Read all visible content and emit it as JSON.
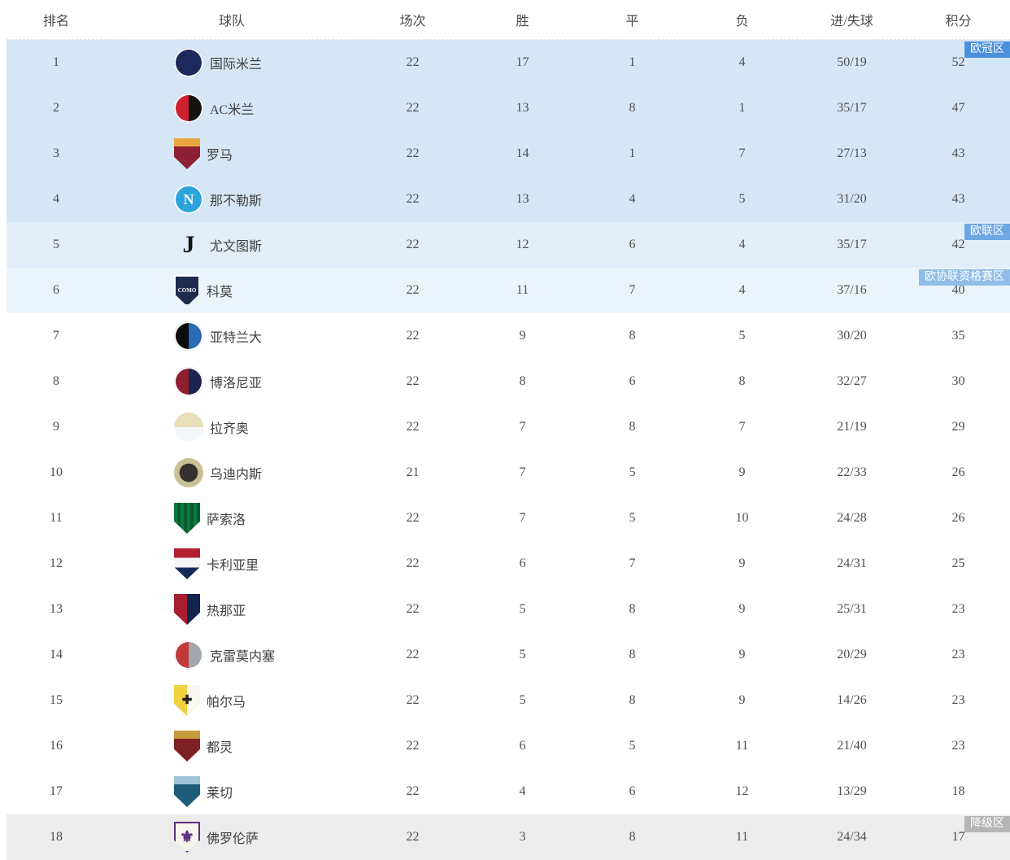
{
  "table": {
    "columns": [
      "排名",
      "球队",
      "场次",
      "胜",
      "平",
      "负",
      "进/失球",
      "积分"
    ]
  },
  "zones": {
    "ucl": {
      "label": "欧冠区",
      "row_bg": "#d5e7f7",
      "badge_bg": "#4a90dd"
    },
    "uel": {
      "label": "欧联区",
      "row_bg": "#e1eefa",
      "badge_bg": "#6fa7e2"
    },
    "uecl": {
      "label": "欧协联资格赛区",
      "row_bg": "#ecf4fb",
      "badge_bg": "#8fbde8"
    },
    "releg": {
      "label": "降级区",
      "row_bg": "#ececec",
      "badge_bg": "#b5b5b5"
    }
  },
  "teams": [
    {
      "rank": "1",
      "name": "国际米兰",
      "played": "22",
      "win": "17",
      "draw": "1",
      "loss": "4",
      "goals": "50/19",
      "points": "52",
      "zone": "ucl",
      "show_badge": true,
      "logo": {
        "shape": "circle",
        "pattern": "solid",
        "colors": [
          "#1b2a5b"
        ],
        "ring": true,
        "text": "",
        "text_color": "#ffffff",
        "text_size": "10px"
      }
    },
    {
      "rank": "2",
      "name": "AC米兰",
      "played": "22",
      "win": "13",
      "draw": "8",
      "loss": "1",
      "goals": "35/17",
      "points": "47",
      "zone": "ucl",
      "show_badge": false,
      "logo": {
        "shape": "circle",
        "pattern": "v",
        "colors": [
          "#cc2030",
          "#141414"
        ],
        "ring": true,
        "text": "",
        "text_color": "#ffffff",
        "text_size": "10px"
      }
    },
    {
      "rank": "3",
      "name": "罗马",
      "played": "22",
      "win": "14",
      "draw": "1",
      "loss": "7",
      "goals": "27/13",
      "points": "43",
      "zone": "ucl",
      "show_badge": false,
      "logo": {
        "shape": "shield",
        "pattern": "h25",
        "colors": [
          "#e9a63c",
          "#8e2033"
        ],
        "ring": false,
        "text": "",
        "text_color": "#ffffff",
        "text_size": "10px"
      }
    },
    {
      "rank": "4",
      "name": "那不勒斯",
      "played": "22",
      "win": "13",
      "draw": "4",
      "loss": "5",
      "goals": "31/20",
      "points": "43",
      "zone": "ucl",
      "show_badge": false,
      "logo": {
        "shape": "circle",
        "pattern": "solid",
        "colors": [
          "#2da3dc"
        ],
        "ring": true,
        "text": "N",
        "text_color": "#ffffff",
        "text_size": "18px"
      }
    },
    {
      "rank": "5",
      "name": "尤文图斯",
      "played": "22",
      "win": "12",
      "draw": "6",
      "loss": "4",
      "goals": "35/17",
      "points": "42",
      "zone": "uel",
      "show_badge": true,
      "logo": {
        "shape": "circle",
        "pattern": "solid",
        "colors": [
          "transparent"
        ],
        "ring": false,
        "text": "J",
        "text_color": "#111111",
        "text_size": "30px"
      }
    },
    {
      "rank": "6",
      "name": "科莫",
      "played": "22",
      "win": "11",
      "draw": "7",
      "loss": "4",
      "goals": "37/16",
      "points": "40",
      "zone": "uecl",
      "show_badge": true,
      "logo": {
        "shape": "shield",
        "pattern": "solid",
        "colors": [
          "#1d2b4f"
        ],
        "ring": true,
        "ring_color": "#ffffff",
        "text": "COMO",
        "text_color": "#ffffff",
        "text_size": "7px"
      }
    },
    {
      "rank": "7",
      "name": "亚特兰大",
      "played": "22",
      "win": "9",
      "draw": "8",
      "loss": "5",
      "goals": "30/20",
      "points": "35",
      "zone": null,
      "show_badge": false,
      "logo": {
        "shape": "circle",
        "pattern": "v",
        "colors": [
          "#0c0c0c",
          "#2a6cb4"
        ],
        "ring": true,
        "text": "",
        "text_color": "#ffffff",
        "text_size": "10px"
      }
    },
    {
      "rank": "8",
      "name": "博洛尼亚",
      "played": "22",
      "win": "8",
      "draw": "6",
      "loss": "8",
      "goals": "32/27",
      "points": "30",
      "zone": null,
      "show_badge": false,
      "logo": {
        "shape": "circle",
        "pattern": "v",
        "colors": [
          "#8e1f2f",
          "#1b2550"
        ],
        "ring": true,
        "text": "",
        "text_color": "#ffffff",
        "text_size": "10px"
      }
    },
    {
      "rank": "9",
      "name": "拉齐奥",
      "played": "22",
      "win": "7",
      "draw": "8",
      "loss": "7",
      "goals": "21/19",
      "points": "29",
      "zone": null,
      "show_badge": false,
      "logo": {
        "shape": "circle",
        "pattern": "h",
        "colors": [
          "#e8dfb8",
          "#f4f8fb"
        ],
        "ring": false,
        "text": "",
        "text_color": "#b49b4a",
        "text_size": "10px"
      }
    },
    {
      "rank": "10",
      "name": "乌迪内斯",
      "played": "21",
      "win": "7",
      "draw": "5",
      "loss": "9",
      "goals": "22/33",
      "points": "26",
      "zone": null,
      "show_badge": false,
      "logo": {
        "shape": "circle",
        "pattern": "radial",
        "colors": [
          "#33322e",
          "#c9c096"
        ],
        "ring": false,
        "text": "",
        "text_color": "#ffffff",
        "text_size": "10px"
      }
    },
    {
      "rank": "11",
      "name": "萨索洛",
      "played": "22",
      "win": "7",
      "draw": "5",
      "loss": "10",
      "goals": "24/28",
      "points": "26",
      "zone": null,
      "show_badge": false,
      "logo": {
        "shape": "shield",
        "pattern": "stripes",
        "colors": [
          "#0b7a3e",
          "#0a5a2e"
        ],
        "ring": false,
        "text": "",
        "text_color": "#ffffff",
        "text_size": "10px"
      }
    },
    {
      "rank": "12",
      "name": "卡利亚里",
      "played": "22",
      "win": "6",
      "draw": "7",
      "loss": "9",
      "goals": "24/31",
      "points": "25",
      "zone": null,
      "show_badge": false,
      "logo": {
        "shape": "shield",
        "pattern": "tri-h",
        "colors": [
          "#b22032",
          "#f4f4f4",
          "#182a56"
        ],
        "ring": false,
        "text": "",
        "text_color": "#ffffff",
        "text_size": "10px"
      }
    },
    {
      "rank": "13",
      "name": "热那亚",
      "played": "22",
      "win": "5",
      "draw": "8",
      "loss": "9",
      "goals": "25/31",
      "points": "23",
      "zone": null,
      "show_badge": false,
      "logo": {
        "shape": "shield",
        "pattern": "v",
        "colors": [
          "#a81e2e",
          "#14254d"
        ],
        "ring": false,
        "text": "",
        "text_color": "#ffffff",
        "text_size": "10px"
      }
    },
    {
      "rank": "14",
      "name": "克雷莫内塞",
      "played": "22",
      "win": "5",
      "draw": "8",
      "loss": "9",
      "goals": "20/29",
      "points": "23",
      "zone": null,
      "show_badge": false,
      "logo": {
        "shape": "circle",
        "pattern": "v",
        "colors": [
          "#c13a3a",
          "#a3a7ad"
        ],
        "ring": true,
        "text": "",
        "text_color": "#ffffff",
        "text_size": "10px"
      }
    },
    {
      "rank": "15",
      "name": "帕尔马",
      "played": "22",
      "win": "5",
      "draw": "8",
      "loss": "9",
      "goals": "14/26",
      "points": "23",
      "zone": null,
      "show_badge": false,
      "logo": {
        "shape": "shield",
        "pattern": "v",
        "colors": [
          "#efd23e",
          "#f8f6ee"
        ],
        "ring": false,
        "text": "✚",
        "text_color": "#222222",
        "text_size": "15px"
      }
    },
    {
      "rank": "16",
      "name": "都灵",
      "played": "22",
      "win": "6",
      "draw": "5",
      "loss": "11",
      "goals": "21/40",
      "points": "23",
      "zone": null,
      "show_badge": false,
      "logo": {
        "shape": "shield",
        "pattern": "h25",
        "colors": [
          "#c79a3d",
          "#7f2024"
        ],
        "ring": false,
        "text": "",
        "text_color": "#ffffff",
        "text_size": "10px"
      }
    },
    {
      "rank": "17",
      "name": "莱切",
      "played": "22",
      "win": "4",
      "draw": "6",
      "loss": "12",
      "goals": "13/29",
      "points": "18",
      "zone": null,
      "show_badge": false,
      "logo": {
        "shape": "shield",
        "pattern": "h25",
        "colors": [
          "#9fc3d6",
          "#1d5d7a"
        ],
        "ring": false,
        "text": "",
        "text_color": "#ffffff",
        "text_size": "10px"
      }
    },
    {
      "rank": "18",
      "name": "佛罗伦萨",
      "played": "22",
      "win": "3",
      "draw": "8",
      "loss": "11",
      "goals": "24/34",
      "points": "17",
      "zone": "releg",
      "show_badge": true,
      "logo": {
        "shape": "shield",
        "pattern": "solid",
        "colors": [
          "#f7f4ec"
        ],
        "ring": true,
        "ring_color": "#5a2d82",
        "text": "⚜",
        "text_color": "#5a2d82",
        "text_size": "20px"
      }
    }
  ]
}
